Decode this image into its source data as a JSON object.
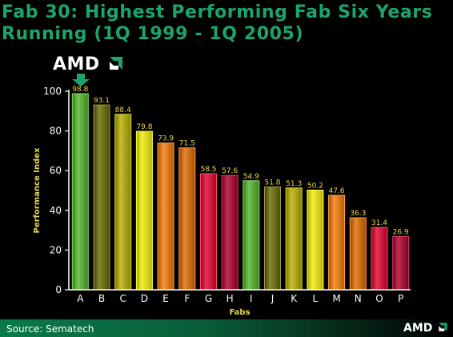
{
  "slide": {
    "title_line1": "Fab 30: Highest Performing Fab Six Years",
    "title_line2": "Running (1Q 1999 - 1Q 2005)",
    "logo_text": "AMD",
    "source": "Source: Sematech",
    "footer_logo_text": "AMD"
  },
  "chart_data": {
    "type": "bar",
    "title": "Fab 30: Highest Performing Fab Six Years Running (1Q 1999 - 1Q 2005)",
    "xlabel": "Fabs",
    "ylabel": "Performance Index",
    "ylim": [
      0,
      100
    ],
    "yticks": [
      0,
      20,
      40,
      60,
      80,
      100
    ],
    "grid": false,
    "categories": [
      "A",
      "B",
      "C",
      "D",
      "E",
      "F",
      "G",
      "H",
      "I",
      "J",
      "K",
      "L",
      "M",
      "N",
      "O",
      "P"
    ],
    "values": [
      98.8,
      93.1,
      88.4,
      79.8,
      73.9,
      71.5,
      58.5,
      57.6,
      54.9,
      51.8,
      51.3,
      50.2,
      47.6,
      36.3,
      31.4,
      26.9
    ],
    "value_labels": [
      "98.8",
      "93.1",
      "88.4",
      "79.8",
      "73.9",
      "71.5",
      "58.5",
      "57.6",
      "54.9",
      "51.8",
      "51.3",
      "50.2",
      "47.6",
      "36.3",
      "31.4",
      "26.9"
    ],
    "bar_colors": [
      "#5aa53a",
      "#6b6a12",
      "#a8a010",
      "#d6d21a",
      "#d9771a",
      "#c86a12",
      "#c8153c",
      "#a0103a",
      "#5aa53a",
      "#6b6a12",
      "#a8a010",
      "#d6d21a",
      "#d9771a",
      "#c86a12",
      "#c8153c",
      "#a0103a"
    ],
    "colors": {
      "axis": "#ffffff",
      "label": "#e8d84a",
      "value_label": "#e8d84a",
      "tick_label": "#ffffff",
      "highlight_arrow": "#1ca56b"
    }
  }
}
